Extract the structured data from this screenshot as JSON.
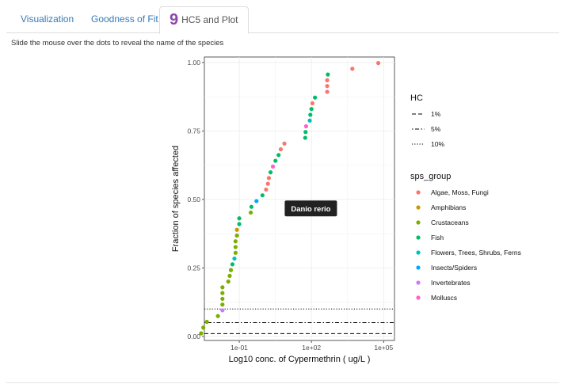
{
  "tabs": [
    {
      "label": "Visualization",
      "active": false
    },
    {
      "label": "Goodness of Fit",
      "active": false
    },
    {
      "label": "HC5 and Plot",
      "active": true
    }
  ],
  "step_badge": "9",
  "hint": "Slide the mouse over the dots to reveal the name of the species",
  "tooltip": {
    "text": "Danio rerio",
    "x": 9,
    "y": 0.467
  },
  "chart_data": {
    "type": "scatter",
    "xlabel": "Log10 conc. of Cypermethrin ( ug/L )",
    "ylabel": "Fraction of species affected",
    "x_scale": "log10",
    "xlim_log10": [
      -2.45,
      5.45
    ],
    "ylim": [
      -0.015,
      1.02
    ],
    "x_ticks": [
      {
        "label": "1e-01",
        "value": 0.1
      },
      {
        "label": "1e+02",
        "value": 100
      },
      {
        "label": "1e+05",
        "value": 100000
      }
    ],
    "y_ticks": [
      {
        "label": "0.00",
        "value": 0
      },
      {
        "label": "0.25",
        "value": 0.25
      },
      {
        "label": "0.50",
        "value": 0.5
      },
      {
        "label": "0.75",
        "value": 0.75
      },
      {
        "label": "1.00",
        "value": 1.0
      }
    ],
    "grid": true,
    "hc_lines": [
      {
        "name": "1%",
        "style": "dashed",
        "y": 0.01
      },
      {
        "name": "5%",
        "style": "dotdash",
        "y": 0.05
      },
      {
        "name": "10%",
        "style": "dotted",
        "y": 0.1
      }
    ],
    "legend_hc_title": "HC",
    "legend_group_title": "sps_group",
    "legend_position": "right",
    "groups": [
      {
        "name": "Algae, Moss, Fungi",
        "color": "#F8766D"
      },
      {
        "name": "Amphibians",
        "color": "#C49A00"
      },
      {
        "name": "Crustaceans",
        "color": "#7CAE00"
      },
      {
        "name": "Fish",
        "color": "#00BE67"
      },
      {
        "name": "Flowers, Trees, Shrubs, Ferns",
        "color": "#00BFC4"
      },
      {
        "name": "Insects/Spiders",
        "color": "#00A9FF"
      },
      {
        "name": "Invertebrates",
        "color": "#C77CFF"
      },
      {
        "name": "Molluscs",
        "color": "#FF61CC"
      }
    ],
    "points": [
      {
        "x": 0.0026,
        "y": 0.011,
        "group": "Crustaceans"
      },
      {
        "x": 0.0032,
        "y": 0.032,
        "group": "Crustaceans"
      },
      {
        "x": 0.0045,
        "y": 0.053,
        "group": "Crustaceans"
      },
      {
        "x": 0.013,
        "y": 0.074,
        "group": "Crustaceans"
      },
      {
        "x": 0.02,
        "y": 0.095,
        "group": "Invertebrates"
      },
      {
        "x": 0.02,
        "y": 0.116,
        "group": "Crustaceans"
      },
      {
        "x": 0.02,
        "y": 0.137,
        "group": "Crustaceans"
      },
      {
        "x": 0.02,
        "y": 0.158,
        "group": "Crustaceans"
      },
      {
        "x": 0.02,
        "y": 0.179,
        "group": "Crustaceans"
      },
      {
        "x": 0.035,
        "y": 0.2,
        "group": "Crustaceans"
      },
      {
        "x": 0.04,
        "y": 0.221,
        "group": "Crustaceans"
      },
      {
        "x": 0.045,
        "y": 0.242,
        "group": "Crustaceans"
      },
      {
        "x": 0.052,
        "y": 0.263,
        "group": "Fish"
      },
      {
        "x": 0.063,
        "y": 0.284,
        "group": "Flowers, Trees, Shrubs, Ferns"
      },
      {
        "x": 0.07,
        "y": 0.305,
        "group": "Crustaceans"
      },
      {
        "x": 0.07,
        "y": 0.326,
        "group": "Crustaceans"
      },
      {
        "x": 0.07,
        "y": 0.347,
        "group": "Crustaceans"
      },
      {
        "x": 0.08,
        "y": 0.368,
        "group": "Crustaceans"
      },
      {
        "x": 0.08,
        "y": 0.389,
        "group": "Amphibians"
      },
      {
        "x": 0.1,
        "y": 0.41,
        "group": "Fish"
      },
      {
        "x": 0.1,
        "y": 0.431,
        "group": "Fish"
      },
      {
        "x": 0.3,
        "y": 0.452,
        "group": "Crustaceans"
      },
      {
        "x": 0.32,
        "y": 0.473,
        "group": "Fish"
      },
      {
        "x": 0.52,
        "y": 0.494,
        "group": "Insects/Spiders"
      },
      {
        "x": 0.92,
        "y": 0.515,
        "group": "Fish"
      },
      {
        "x": 1.3,
        "y": 0.536,
        "group": "Algae, Moss, Fungi"
      },
      {
        "x": 1.55,
        "y": 0.557,
        "group": "Algae, Moss, Fungi"
      },
      {
        "x": 1.7,
        "y": 0.578,
        "group": "Algae, Moss, Fungi"
      },
      {
        "x": 2.0,
        "y": 0.599,
        "group": "Fish"
      },
      {
        "x": 2.5,
        "y": 0.62,
        "group": "Molluscs"
      },
      {
        "x": 3.2,
        "y": 0.641,
        "group": "Fish"
      },
      {
        "x": 4.3,
        "y": 0.662,
        "group": "Fish"
      },
      {
        "x": 5.3,
        "y": 0.683,
        "group": "Algae, Moss, Fungi"
      },
      {
        "x": 7.5,
        "y": 0.704,
        "group": "Algae, Moss, Fungi"
      },
      {
        "x": 55,
        "y": 0.725,
        "group": "Fish"
      },
      {
        "x": 57,
        "y": 0.746,
        "group": "Fish"
      },
      {
        "x": 60,
        "y": 0.767,
        "group": "Molluscs"
      },
      {
        "x": 85,
        "y": 0.788,
        "group": "Flowers, Trees, Shrubs, Ferns"
      },
      {
        "x": 90,
        "y": 0.809,
        "group": "Fish"
      },
      {
        "x": 100,
        "y": 0.83,
        "group": "Fish"
      },
      {
        "x": 110,
        "y": 0.851,
        "group": "Algae, Moss, Fungi"
      },
      {
        "x": 140,
        "y": 0.872,
        "group": "Fish"
      },
      {
        "x": 450,
        "y": 0.893,
        "group": "Algae, Moss, Fungi"
      },
      {
        "x": 450,
        "y": 0.914,
        "group": "Algae, Moss, Fungi"
      },
      {
        "x": 450,
        "y": 0.935,
        "group": "Algae, Moss, Fungi"
      },
      {
        "x": 480,
        "y": 0.956,
        "group": "Fish"
      },
      {
        "x": 5000,
        "y": 0.977,
        "group": "Algae, Moss, Fungi"
      },
      {
        "x": 60000,
        "y": 0.998,
        "group": "Algae, Moss, Fungi"
      }
    ]
  }
}
